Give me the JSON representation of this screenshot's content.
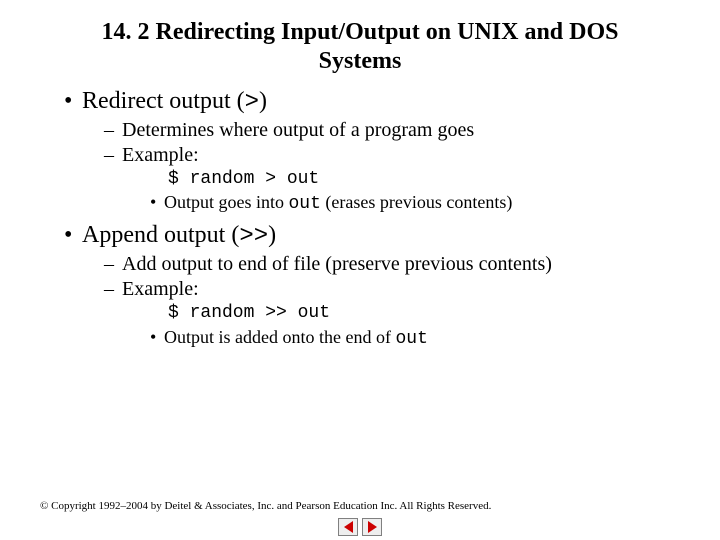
{
  "title": "14. 2   Redirecting Input/Output on UNIX and DOS Systems",
  "b1a_pre": "Redirect output (",
  "b1a_sym": ">",
  "b1a_post": ")",
  "b2a": "Determines where output of a program goes",
  "b2b": "Example:",
  "code1": "$ random > out",
  "b3a_pre": "Output goes into ",
  "b3a_code": "out",
  "b3a_post": " (erases previous contents)",
  "b1b_pre": "Append output (",
  "b1b_sym": ">>",
  "b1b_post": ")",
  "b2c": "Add output to end of file (preserve previous contents)",
  "b2d": "Example:",
  "code2": "$ random >> out",
  "b3b_pre": "Output is added onto the end of ",
  "b3b_code": "out",
  "copyright": "© Copyright 1992–2004 by Deitel & Associates, Inc. and Pearson Education Inc. All Rights Reserved."
}
